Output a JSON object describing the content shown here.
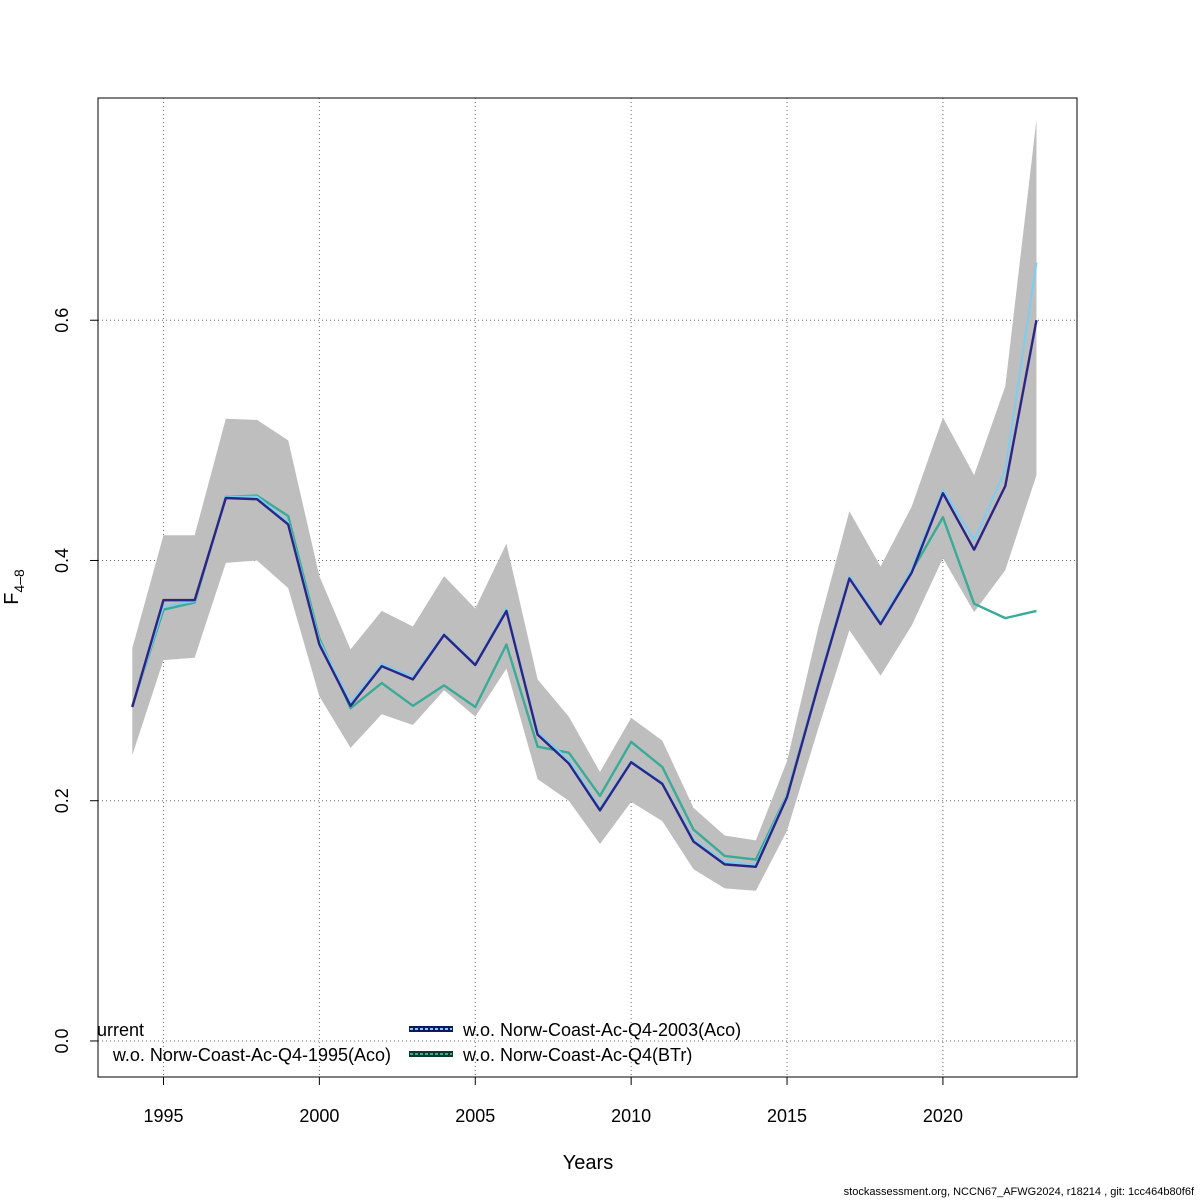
{
  "chart_data": {
    "type": "line",
    "xlabel": "Years",
    "ylabel_main": "F",
    "ylabel_sub": "4–8",
    "xlim": [
      1992.9,
      2024.3
    ],
    "ylim": [
      -0.03,
      0.785
    ],
    "x_ticks": [
      1995,
      2000,
      2005,
      2010,
      2015,
      2020
    ],
    "y_ticks": [
      0.0,
      0.2,
      0.4,
      0.6
    ],
    "y_tick_labels": [
      "0.0",
      "0.2",
      "0.4",
      "0.6"
    ],
    "grid": true,
    "legend_position": "bottom-left",
    "confidence_band": {
      "x": [
        1994,
        1995,
        1996,
        1997,
        1998,
        1999,
        2000,
        2001,
        2002,
        2003,
        2004,
        2005,
        2006,
        2007,
        2008,
        2009,
        2010,
        2011,
        2012,
        2013,
        2014,
        2015,
        2016,
        2017,
        2018,
        2019,
        2020,
        2021,
        2022,
        2023
      ],
      "lower": [
        0.238,
        0.317,
        0.319,
        0.398,
        0.4,
        0.377,
        0.287,
        0.244,
        0.272,
        0.263,
        0.292,
        0.27,
        0.31,
        0.218,
        0.2,
        0.164,
        0.199,
        0.183,
        0.143,
        0.127,
        0.125,
        0.175,
        0.26,
        0.342,
        0.304,
        0.346,
        0.402,
        0.357,
        0.392,
        0.471
      ],
      "upper": [
        0.327,
        0.421,
        0.421,
        0.518,
        0.517,
        0.5,
        0.387,
        0.326,
        0.358,
        0.345,
        0.387,
        0.36,
        0.414,
        0.301,
        0.27,
        0.224,
        0.269,
        0.25,
        0.194,
        0.171,
        0.167,
        0.233,
        0.344,
        0.441,
        0.395,
        0.445,
        0.519,
        0.471,
        0.545,
        0.767
      ]
    },
    "series": [
      {
        "name": "current",
        "color": "#2c2585",
        "dashed": false,
        "values": [
          0.278,
          0.367,
          0.367,
          0.452,
          0.451,
          0.43,
          0.33,
          0.279,
          0.312,
          0.301,
          0.338,
          0.313,
          0.358,
          0.255,
          0.231,
          0.192,
          0.232,
          0.214,
          0.166,
          0.147,
          0.145,
          0.203,
          0.296,
          0.385,
          0.347,
          0.39,
          0.456,
          0.409,
          0.462,
          0.6
        ]
      },
      {
        "name": "w.o. Norw-Coast-Ac-Q4-1995(Aco)",
        "color": "#1a1aa8",
        "dashed": true,
        "values": [
          0.278,
          0.367,
          0.367,
          0.452,
          0.451,
          0.43,
          0.33,
          0.279,
          0.312,
          0.301,
          0.338,
          0.313,
          0.358,
          0.255,
          0.231,
          0.192,
          0.232,
          0.214,
          0.166,
          0.147,
          0.145,
          0.203,
          0.296,
          0.385,
          0.347,
          0.39,
          0.456,
          0.409,
          0.462,
          0.6
        ]
      },
      {
        "name": "w.o. Norw-Coast-Ac-Q4-2003(Aco)",
        "color": "#7ccdf0",
        "dashed": true,
        "values": [
          0.278,
          0.362,
          0.366,
          0.453,
          0.453,
          0.432,
          0.333,
          0.282,
          0.314,
          0.303,
          0.339,
          0.314,
          0.36,
          0.257,
          0.234,
          0.194,
          0.233,
          0.215,
          0.168,
          0.149,
          0.147,
          0.205,
          0.298,
          0.387,
          0.349,
          0.393,
          0.459,
          0.417,
          0.475,
          0.648
        ]
      },
      {
        "name": "w.o. Norw-Coast-Ac-Q4(BTr)",
        "color": "#3aab97",
        "dashed": true,
        "values": [
          0.279,
          0.359,
          0.365,
          0.453,
          0.454,
          0.437,
          0.335,
          0.277,
          0.298,
          0.279,
          0.296,
          0.278,
          0.33,
          0.245,
          0.24,
          0.204,
          0.249,
          0.228,
          0.176,
          0.154,
          0.151,
          0.205,
          0.297,
          0.386,
          0.348,
          0.391,
          0.436,
          0.364,
          0.352,
          0.358
        ]
      }
    ]
  },
  "legend": {
    "items": [
      {
        "label": "current",
        "color": "#2c2585"
      },
      {
        "label": "w.o. Norw-Coast-Ac-Q4-1995(Aco)",
        "color": "#1a1aa8"
      },
      {
        "label": "w.o. Norw-Coast-Ac-Q4-2003(Aco)",
        "color": "#7ccdf0"
      },
      {
        "label": "w.o. Norw-Coast-Ac-Q4(BTr)",
        "color": "#3aab97"
      }
    ]
  },
  "footer": "stockassessment.org, NCCN67_AFWG2024, r18214 , git: 1cc464b80f6f"
}
